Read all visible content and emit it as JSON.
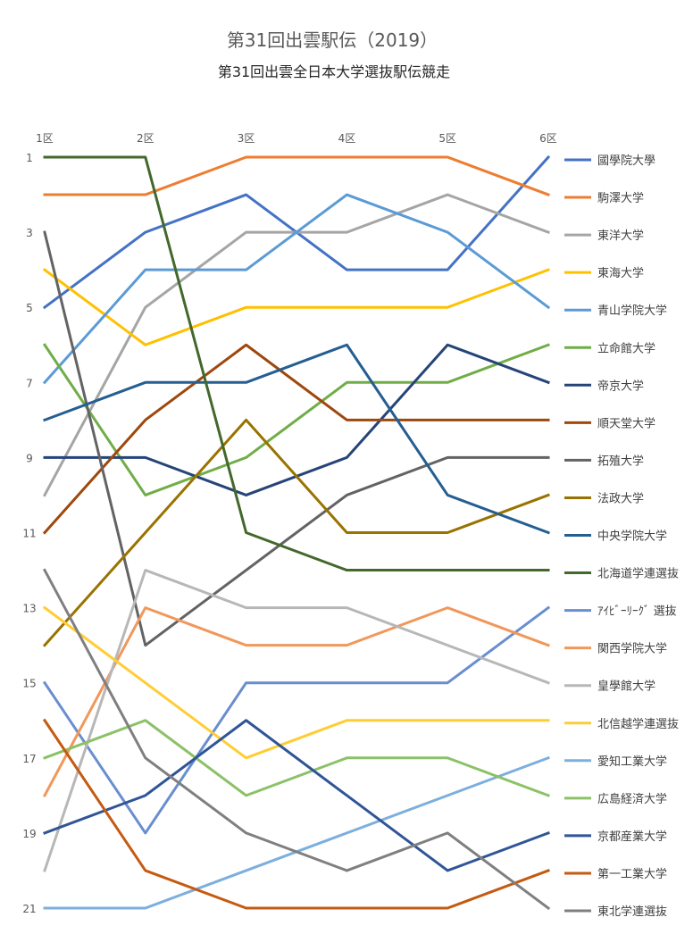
{
  "chart_data": {
    "type": "line",
    "title": "第31回出雲駅伝（2019）",
    "subtitle": "第31回出雲全日本大学選抜駅伝競走",
    "categories": [
      "1区",
      "2区",
      "3区",
      "4区",
      "5区",
      "6区"
    ],
    "y_ticks": [
      "1",
      "3",
      "5",
      "7",
      "9",
      "11",
      "13",
      "15",
      "17",
      "19",
      "21"
    ],
    "y_inverted": true,
    "ylim": [
      1,
      21
    ],
    "grid": false,
    "legend_position": "right",
    "series": [
      {
        "name": "國學院大學",
        "color": "#4472C4",
        "values": [
          5,
          3,
          2,
          4,
          4,
          1
        ]
      },
      {
        "name": "駒澤大学",
        "color": "#ED7D31",
        "values": [
          2,
          2,
          1,
          1,
          1,
          2
        ]
      },
      {
        "name": "東洋大学",
        "color": "#A5A5A5",
        "values": [
          10,
          5,
          3,
          3,
          2,
          3
        ]
      },
      {
        "name": "東海大学",
        "color": "#FFC000",
        "values": [
          4,
          6,
          5,
          5,
          5,
          4
        ]
      },
      {
        "name": "青山学院大学",
        "color": "#5B9BD5",
        "values": [
          7,
          4,
          4,
          2,
          3,
          5
        ]
      },
      {
        "name": "立命館大学",
        "color": "#70AD47",
        "values": [
          6,
          10,
          9,
          7,
          7,
          6
        ]
      },
      {
        "name": "帝京大学",
        "color": "#264478",
        "values": [
          9,
          9,
          10,
          9,
          6,
          7
        ]
      },
      {
        "name": "順天堂大学",
        "color": "#9E480E",
        "values": [
          11,
          8,
          6,
          8,
          8,
          8
        ]
      },
      {
        "name": "拓殖大学",
        "color": "#636363",
        "values": [
          3,
          14,
          12,
          10,
          9,
          9
        ]
      },
      {
        "name": "法政大学",
        "color": "#997300",
        "values": [
          14,
          11,
          8,
          11,
          11,
          10
        ]
      },
      {
        "name": "中央学院大学",
        "color": "#255E91",
        "values": [
          8,
          7,
          7,
          6,
          10,
          11
        ]
      },
      {
        "name": "北海道学連選抜",
        "color": "#43682B",
        "values": [
          1,
          1,
          11,
          12,
          12,
          12
        ]
      },
      {
        "name": "ｱｲﾋﾞｰﾘｰｸﾞ 選抜",
        "color": "#698ED0",
        "values": [
          15,
          19,
          15,
          15,
          15,
          13
        ]
      },
      {
        "name": "関西学院大学",
        "color": "#F1975A",
        "values": [
          18,
          13,
          14,
          14,
          13,
          14
        ]
      },
      {
        "name": "皇學館大学",
        "color": "#B7B7B7",
        "values": [
          20,
          12,
          13,
          13,
          14,
          15
        ]
      },
      {
        "name": "北信越学連選抜",
        "color": "#FFCD33",
        "values": [
          13,
          15,
          17,
          16,
          16,
          16
        ]
      },
      {
        "name": "愛知工業大学",
        "color": "#7CAFDD",
        "values": [
          21,
          21,
          20,
          19,
          18,
          17
        ]
      },
      {
        "name": "広島経済大学",
        "color": "#8CC168",
        "values": [
          17,
          16,
          18,
          17,
          17,
          18
        ]
      },
      {
        "name": "京都産業大学",
        "color": "#2F5597",
        "values": [
          19,
          18,
          16,
          18,
          20,
          19
        ]
      },
      {
        "name": "第一工業大学",
        "color": "#C55A11",
        "values": [
          16,
          20,
          21,
          21,
          21,
          20
        ]
      },
      {
        "name": "東北学連選抜",
        "color": "#7F7F7F",
        "values": [
          12,
          17,
          19,
          20,
          19,
          21
        ]
      }
    ]
  }
}
